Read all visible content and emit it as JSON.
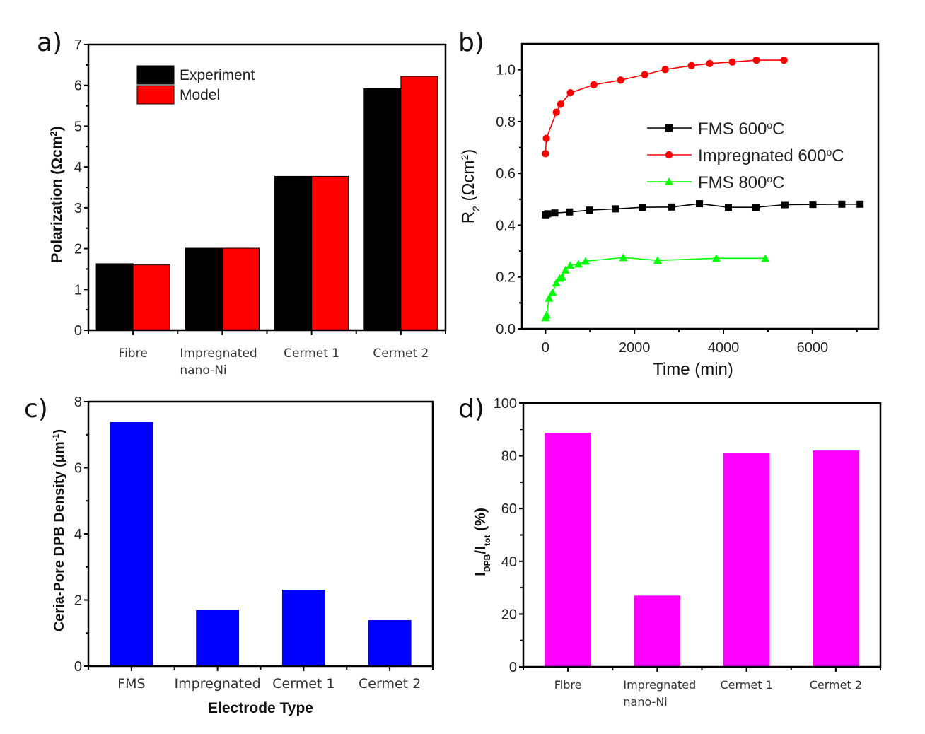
{
  "chart_data": [
    {
      "id": "a",
      "type": "bar",
      "panel_label": "a)",
      "title": "",
      "categories": [
        [
          "Fibre"
        ],
        [
          "Impregnated",
          "nano-Ni"
        ],
        [
          "Cermet 1"
        ],
        [
          "Cermet 2"
        ]
      ],
      "series": [
        {
          "name": "Experiment",
          "color": "#000000",
          "values": [
            1.63,
            2.01,
            3.77,
            5.92
          ]
        },
        {
          "name": "Model",
          "color": "#ff0000",
          "values": [
            1.6,
            2.01,
            3.77,
            6.22
          ]
        }
      ],
      "xlabel": "",
      "ylabel": "Polarization (Ωcm",
      "ylabel_sup": "2",
      "ylabel_end": ")",
      "ylim": [
        0,
        7
      ],
      "yticks": [
        "0",
        "1",
        "2",
        "3",
        "4",
        "5",
        "6",
        "7"
      ],
      "grid": false,
      "legend": "top-left"
    },
    {
      "id": "b",
      "type": "line",
      "panel_label": "b)",
      "title": "",
      "xlabel": "Time (min)",
      "ylabel": "R",
      "ylabel_sub": "2",
      "ylabel_unit": " (Ωcm",
      "ylabel_sup": "2",
      "ylabel_end": ")",
      "xlim": [
        -530,
        7480
      ],
      "ylim": [
        0,
        1.1
      ],
      "xticks": [
        "0",
        "2000",
        "4000",
        "6000"
      ],
      "yticks": [
        "0.0",
        "0.2",
        "0.4",
        "0.6",
        "0.8",
        "1.0"
      ],
      "grid": false,
      "legend": "center-right",
      "series": [
        {
          "name": "FMS 600",
          "name_sup": "o",
          "name_end": "C",
          "color": "#000000",
          "marker": "square",
          "x": [
            0,
            50,
            210,
            540,
            990,
            1580,
            2180,
            2840,
            3460,
            4110,
            4730,
            5380,
            6010,
            6660,
            7070
          ],
          "y": [
            0.44,
            0.444,
            0.447,
            0.451,
            0.458,
            0.463,
            0.469,
            0.47,
            0.483,
            0.469,
            0.469,
            0.479,
            0.48,
            0.481,
            0.481
          ]
        },
        {
          "name": "Impregnated 600",
          "name_sup": "o",
          "name_end": "C",
          "color": "#ff0000",
          "marker": "circle",
          "x": [
            0,
            20,
            245,
            340,
            560,
            1085,
            1690,
            2230,
            2690,
            3280,
            3690,
            4200,
            4740,
            5360
          ],
          "y": [
            0.676,
            0.735,
            0.836,
            0.867,
            0.911,
            0.942,
            0.96,
            0.981,
            1.001,
            1.016,
            1.024,
            1.03,
            1.037,
            1.037
          ]
        },
        {
          "name": "FMS 800",
          "name_sup": "o",
          "name_end": "C",
          "color": "#00ff00",
          "marker": "triangle",
          "x": [
            0,
            25,
            80,
            160,
            240,
            320,
            370,
            450,
            555,
            740,
            900,
            1750,
            2520,
            3840,
            4940
          ],
          "y": [
            0.043,
            0.054,
            0.118,
            0.141,
            0.177,
            0.195,
            0.2,
            0.227,
            0.245,
            0.25,
            0.261,
            0.275,
            0.264,
            0.272,
            0.272
          ]
        }
      ]
    },
    {
      "id": "c",
      "type": "bar",
      "panel_label": "c)",
      "title": "",
      "categories": [
        [
          "FMS"
        ],
        [
          "Impregnated"
        ],
        [
          "Cermet 1"
        ],
        [
          "Cermet 2"
        ]
      ],
      "series": [
        {
          "name": "Ceria-Pore DPB Density",
          "color": "#0000ff",
          "values": [
            7.38,
            1.7,
            2.31,
            1.39
          ]
        }
      ],
      "xlabel": "Electrode Type",
      "ylabel": "Ceria-Pore DPB Density (μm",
      "ylabel_sup": "-1",
      "ylabel_end": ")",
      "ylim": [
        0,
        8
      ],
      "yticks": [
        "0",
        "2",
        "4",
        "6",
        "8"
      ],
      "grid": false,
      "legend": "none"
    },
    {
      "id": "d",
      "type": "bar",
      "panel_label": "d)",
      "title": "",
      "categories": [
        [
          "Fibre"
        ],
        [
          "Impregnated",
          "nano-Ni"
        ],
        [
          "Cermet 1"
        ],
        [
          "Cermet 2"
        ]
      ],
      "series": [
        {
          "name": "I_DPB/I_tot",
          "color": "#ff00ff",
          "values": [
            88.7,
            27.0,
            81.2,
            82.0
          ]
        }
      ],
      "xlabel": "",
      "ylabel": "I",
      "ylabel_sub": "DPB",
      "ylabel_mid": "/I",
      "ylabel_sub2": "tot",
      "ylabel_end": " (%)",
      "ylim": [
        0,
        100
      ],
      "yticks": [
        "0",
        "20",
        "40",
        "60",
        "80",
        "100"
      ],
      "grid": false,
      "legend": "none"
    }
  ]
}
